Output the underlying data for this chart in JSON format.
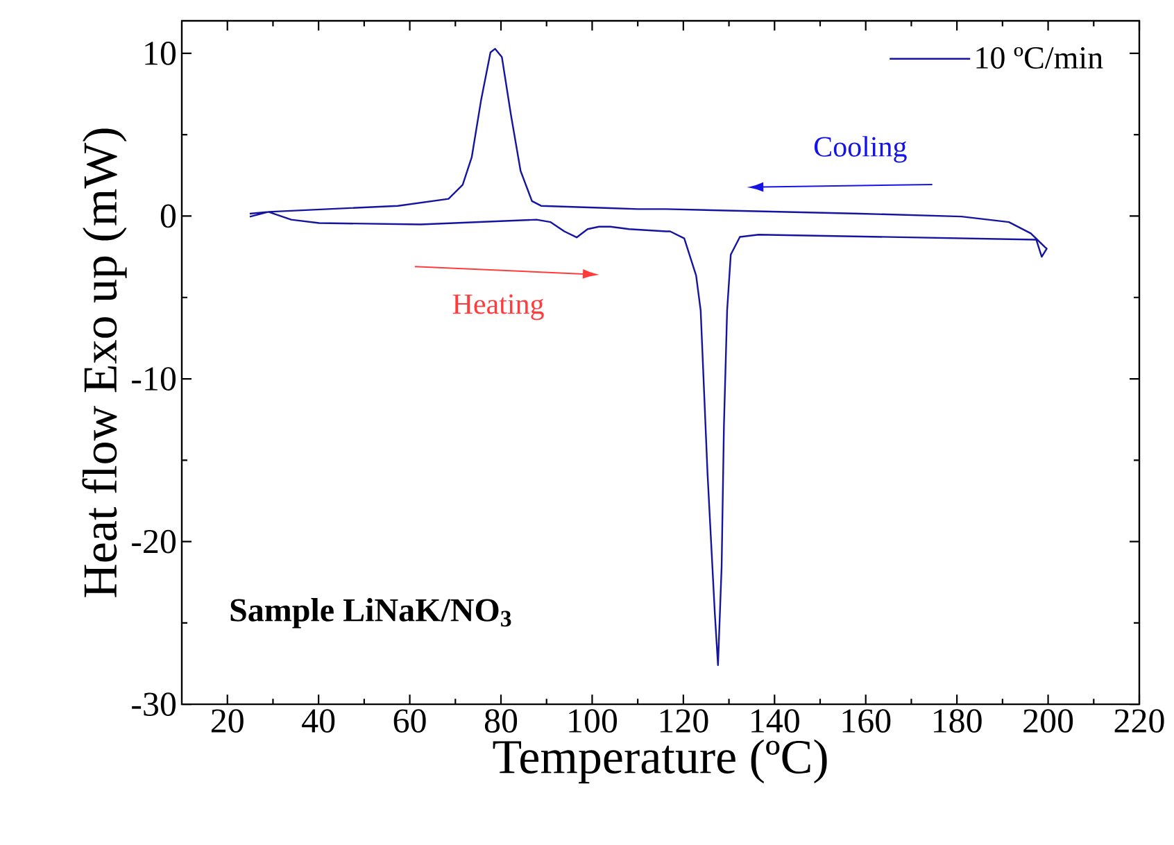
{
  "chart_data": {
    "type": "line",
    "xlabel": "Temperature (ºC)",
    "ylabel": "Heat flow Exo up (mW)",
    "xlim": [
      10,
      220
    ],
    "ylim": [
      -30,
      12
    ],
    "xticks": [
      20,
      40,
      60,
      80,
      100,
      120,
      140,
      160,
      180,
      200,
      220
    ],
    "yticks": [
      -30,
      -20,
      -10,
      0,
      10
    ],
    "legend": "top right",
    "annotations": [
      "Cooling",
      "Heating",
      "Sample LiNaK/NO$_{3}$"
    ],
    "series": [
      {
        "name": "10 ºC/min",
        "color": "#1414a0",
        "x": [
          24.9,
          29,
          34,
          40.1,
          62.4,
          87.8,
          90.9,
          93.9,
          96.6,
          99,
          101.5,
          104,
          108.1,
          116.2,
          117.1,
          120.2,
          122.8,
          123.8,
          125.3,
          126.9,
          127.6,
          128.4,
          128.9,
          129.6,
          130.4,
          132.4,
          136.5,
          197.4,
          198.6,
          199.7,
          199.3,
          196.2,
          191.4,
          181,
          158.8,
          116.2,
          110.1,
          104,
          88.8,
          86.8,
          84.3,
          82.2,
          80.2,
          78.7,
          77.7,
          75.6,
          73.6,
          71.6,
          68.5,
          57.4,
          29,
          24.9
        ],
        "values": [
          -0.04,
          0.26,
          -0.22,
          -0.43,
          -0.51,
          -0.22,
          -0.37,
          -0.94,
          -1.31,
          -0.8,
          -0.65,
          -0.65,
          -0.8,
          -0.94,
          -0.94,
          -1.37,
          -3.65,
          -5.8,
          -15.8,
          -24.4,
          -27.6,
          -21.5,
          -12.9,
          -5.8,
          -2.37,
          -1.28,
          -1.14,
          -1.45,
          -2.5,
          -2.0,
          -1.9,
          -1.06,
          -0.37,
          -0.03,
          0.15,
          0.43,
          0.43,
          0.49,
          0.63,
          0.92,
          2.78,
          6.2,
          9.77,
          10.28,
          10.06,
          7.06,
          3.63,
          1.92,
          1.06,
          0.63,
          0.26,
          0.15
        ]
      }
    ]
  }
}
